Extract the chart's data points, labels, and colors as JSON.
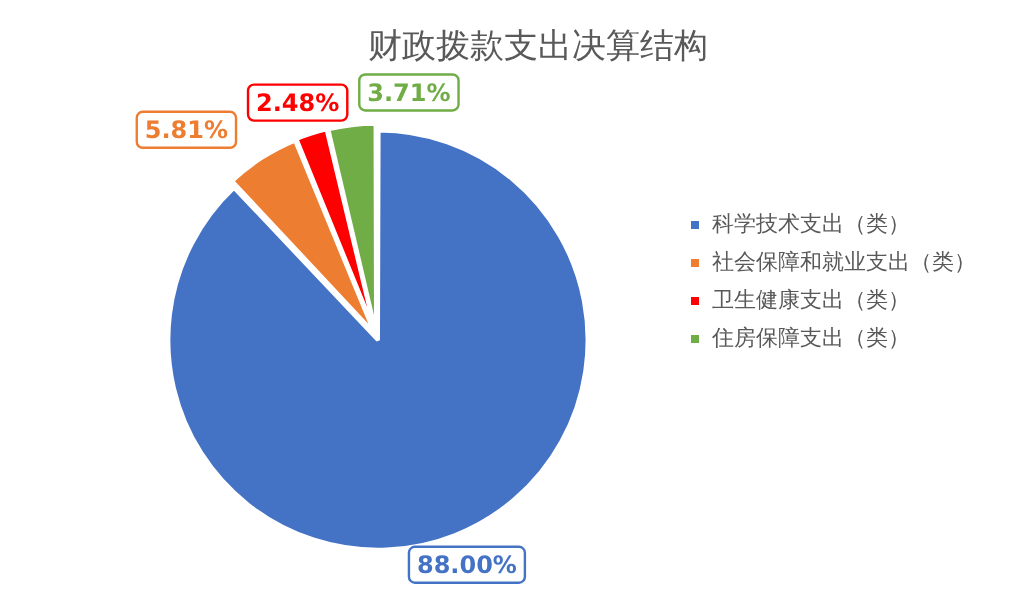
{
  "chart_data": {
    "type": "pie",
    "title": "财政拨款支出决算结构",
    "categories": [
      "科学技术支出（类）",
      "社会保障和就业支出（类）",
      "卫生健康支出（类）",
      "住房保障支出（类）"
    ],
    "values": [
      88.0,
      5.81,
      2.48,
      3.71
    ],
    "colors": [
      "#4472c4",
      "#ed7d31",
      "#ff0000",
      "#70ad47"
    ],
    "value_labels": [
      "88.00%",
      "5.81%",
      "2.48%",
      "3.71%"
    ],
    "legend": "right"
  }
}
